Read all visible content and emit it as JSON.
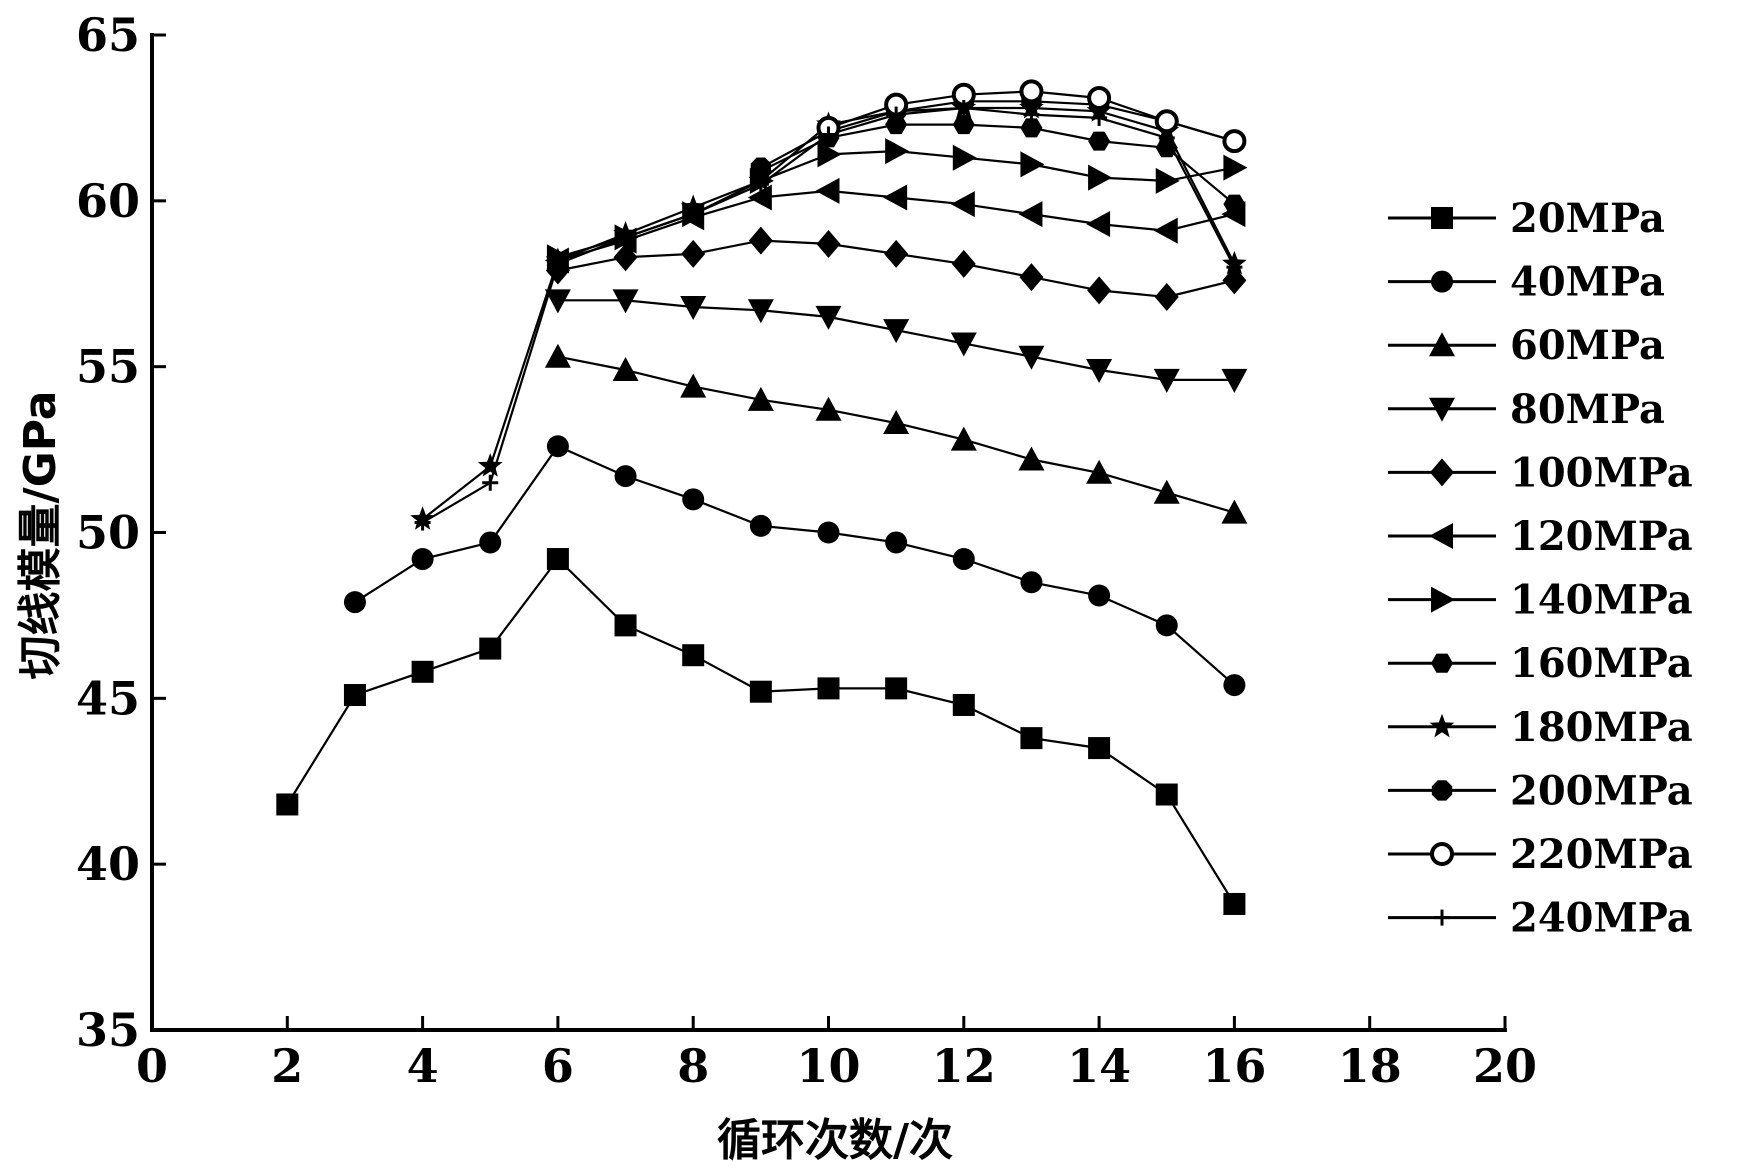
{
  "chart_data": {
    "type": "line",
    "xlabel": "循环次数/次",
    "ylabel": "切线模量/GPa",
    "xlim": [
      0,
      20
    ],
    "ylim": [
      35,
      65
    ],
    "xticks": [
      "0",
      "2",
      "4",
      "6",
      "8",
      "10",
      "12",
      "14",
      "16",
      "18",
      "20"
    ],
    "yticks": [
      "35",
      "40",
      "45",
      "50",
      "55",
      "60",
      "65"
    ],
    "grid": false,
    "legend_position": "right",
    "series": [
      {
        "name": "20MPa",
        "marker": "square",
        "x": [
          2,
          3,
          4,
          5,
          6,
          7,
          8,
          9,
          10,
          11,
          12,
          13,
          14,
          15,
          16
        ],
        "y": [
          41.8,
          45.1,
          45.8,
          46.5,
          49.2,
          47.2,
          46.3,
          45.2,
          45.3,
          45.3,
          44.8,
          43.8,
          43.5,
          42.1,
          38.8
        ]
      },
      {
        "name": "40MPa",
        "marker": "circle",
        "x": [
          3,
          4,
          5,
          6,
          7,
          8,
          9,
          10,
          11,
          12,
          13,
          14,
          15,
          16
        ],
        "y": [
          47.9,
          49.2,
          49.7,
          52.6,
          51.7,
          51.0,
          50.2,
          50.0,
          49.7,
          49.2,
          48.5,
          48.1,
          47.2,
          45.4
        ]
      },
      {
        "name": "60MPa",
        "marker": "triangle-up",
        "x": [
          6,
          7,
          8,
          9,
          10,
          11,
          12,
          13,
          14,
          15,
          16
        ],
        "y": [
          55.3,
          54.9,
          54.4,
          54.0,
          53.7,
          53.3,
          52.8,
          52.2,
          51.8,
          51.2,
          50.6
        ]
      },
      {
        "name": "80MPa",
        "marker": "triangle-down",
        "x": [
          6,
          7,
          8,
          9,
          10,
          11,
          12,
          13,
          14,
          15,
          16
        ],
        "y": [
          57.0,
          57.0,
          56.8,
          56.7,
          56.5,
          56.1,
          55.7,
          55.3,
          54.9,
          54.6,
          54.6
        ]
      },
      {
        "name": "100MPa",
        "marker": "diamond",
        "x": [
          6,
          7,
          8,
          9,
          10,
          11,
          12,
          13,
          14,
          15,
          16
        ],
        "y": [
          57.9,
          58.3,
          58.4,
          58.8,
          58.7,
          58.4,
          58.1,
          57.7,
          57.3,
          57.1,
          57.6
        ]
      },
      {
        "name": "120MPa",
        "marker": "triangle-left",
        "x": [
          6,
          7,
          8,
          9,
          10,
          11,
          12,
          13,
          14,
          15,
          16
        ],
        "y": [
          58.2,
          58.8,
          59.5,
          60.1,
          60.3,
          60.1,
          59.9,
          59.6,
          59.3,
          59.1,
          59.6
        ]
      },
      {
        "name": "140MPa",
        "marker": "triangle-right",
        "x": [
          6,
          7,
          8,
          9,
          10,
          11,
          12,
          13,
          14,
          15,
          16
        ],
        "y": [
          58.3,
          58.9,
          59.6,
          60.6,
          61.4,
          61.5,
          61.3,
          61.1,
          60.7,
          60.6,
          61.0
        ]
      },
      {
        "name": "160MPa",
        "marker": "hexagon",
        "x": [
          9,
          10,
          11,
          12,
          13,
          14,
          15,
          16
        ],
        "y": [
          60.9,
          61.9,
          62.3,
          62.3,
          62.2,
          61.8,
          61.6,
          59.9
        ]
      },
      {
        "name": "180MPa",
        "marker": "star",
        "x": [
          4,
          5,
          6,
          7,
          8,
          9,
          10,
          11,
          12,
          13,
          14,
          15,
          16
        ],
        "y": [
          50.4,
          52.0,
          58.2,
          59.0,
          59.8,
          60.6,
          62.3,
          62.7,
          62.8,
          62.8,
          62.7,
          62.1,
          58.1
        ]
      },
      {
        "name": "200MPa",
        "marker": "octagon",
        "x": [
          9,
          10,
          11,
          12,
          13,
          14,
          15,
          16
        ],
        "y": [
          61.0,
          62.1,
          62.7,
          63.0,
          63.0,
          62.9,
          62.4,
          61.8
        ]
      },
      {
        "name": "220MPa",
        "marker": "circle-open",
        "x": [
          10,
          11,
          12,
          13,
          14,
          15,
          16
        ],
        "y": [
          62.2,
          62.9,
          63.2,
          63.3,
          63.1,
          62.4,
          61.8
        ]
      },
      {
        "name": "240MPa",
        "marker": "plus",
        "x": [
          4,
          5,
          6,
          7,
          8,
          9,
          10,
          11,
          12,
          13,
          14,
          15,
          16
        ],
        "y": [
          50.3,
          51.5,
          58.1,
          58.9,
          59.6,
          60.5,
          62.0,
          62.6,
          62.8,
          62.6,
          62.5,
          61.9,
          58.0
        ]
      }
    ]
  }
}
